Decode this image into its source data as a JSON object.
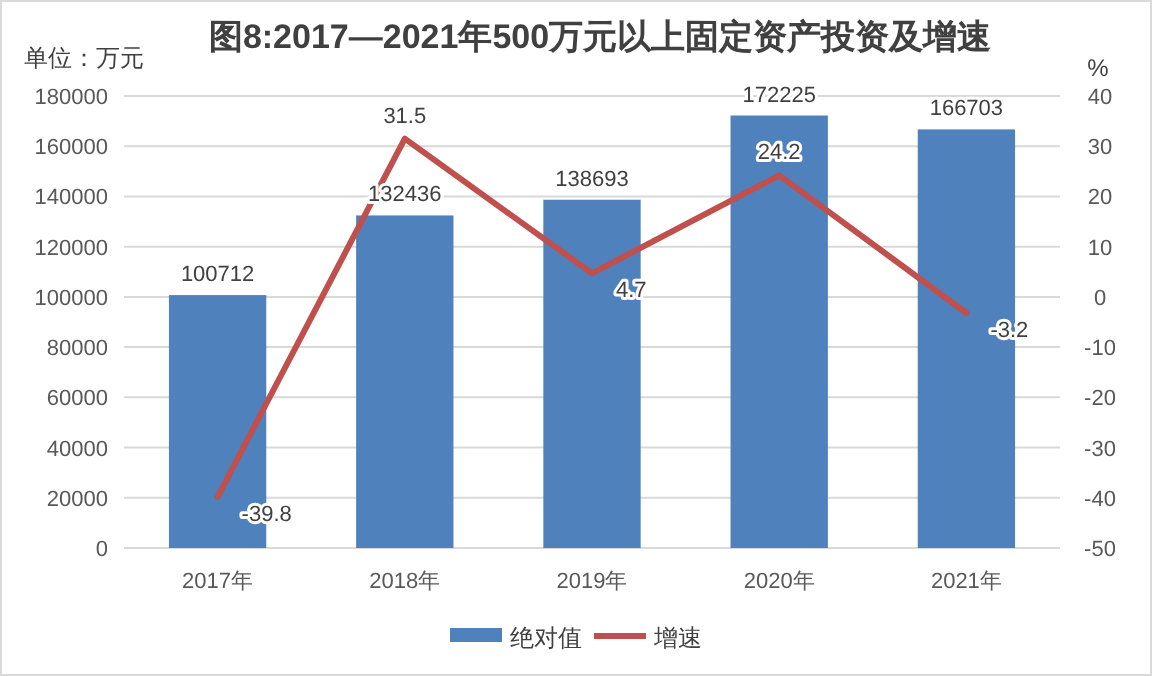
{
  "chart_data": {
    "type": "bar",
    "title": "图8:2017—2021年500万元以上固定资产投资及增速",
    "ylabel": "单位：万元",
    "y2label": "%",
    "categories": [
      "2017年",
      "2018年",
      "2019年",
      "2020年",
      "2021年"
    ],
    "series": [
      {
        "name": "绝对值",
        "color": "#4f81bd",
        "values": [
          100712,
          132436,
          138693,
          172225,
          166703
        ]
      },
      {
        "name": "增速",
        "type": "line",
        "axis": "y2",
        "color": "#c0504d",
        "values": [
          -39.8,
          31.5,
          4.7,
          24.2,
          -3.2
        ]
      }
    ],
    "ylim": [
      0,
      180000
    ],
    "yticks": [
      0,
      20000,
      40000,
      60000,
      80000,
      100000,
      120000,
      140000,
      160000,
      180000
    ],
    "y2lim": [
      -50,
      40
    ],
    "y2ticks": [
      -50,
      -40,
      -30,
      -20,
      -10,
      0,
      10,
      20,
      30,
      40
    ],
    "grid": "y",
    "legend": "bottom",
    "data_labels": true,
    "marker": "none",
    "line_style": "solid"
  }
}
